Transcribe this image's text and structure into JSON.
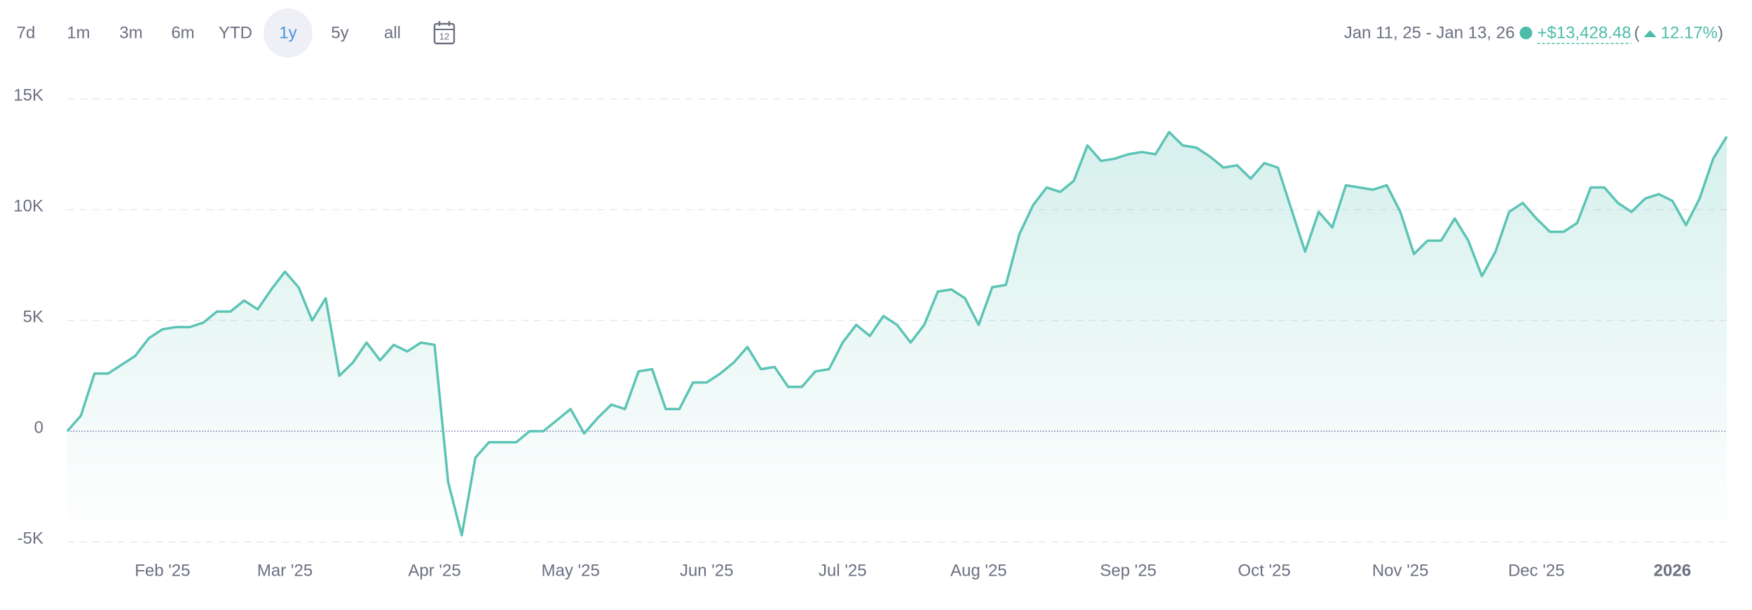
{
  "toolbar": {
    "ranges": [
      "7d",
      "1m",
      "3m",
      "6m",
      "YTD",
      "1y",
      "5y",
      "all"
    ],
    "active": "1y",
    "calendar_day": "12"
  },
  "summary": {
    "date_range": "Jan 11, 25 - Jan 13, 26",
    "change": "+$13,428.48",
    "paren_open": "(",
    "percent": "12.17%",
    "paren_close": ")"
  },
  "chart_data": {
    "type": "line",
    "categories": [
      null,
      null,
      null,
      null,
      null,
      null,
      null,
      "Feb '25",
      null,
      null,
      null,
      null,
      null,
      null,
      null,
      null,
      "Mar '25",
      null,
      null,
      null,
      null,
      null,
      null,
      null,
      null,
      null,
      null,
      "Apr '25",
      null,
      null,
      null,
      null,
      null,
      null,
      null,
      null,
      null,
      "May '25",
      null,
      null,
      null,
      null,
      null,
      null,
      null,
      null,
      null,
      "Jun '25",
      null,
      null,
      null,
      null,
      null,
      null,
      null,
      null,
      null,
      "Jul '25",
      null,
      null,
      null,
      null,
      null,
      null,
      null,
      null,
      null,
      "Aug '25",
      null,
      null,
      null,
      null,
      null,
      null,
      null,
      null,
      null,
      null,
      "Sep '25",
      null,
      null,
      null,
      null,
      null,
      null,
      null,
      null,
      null,
      "Oct '25",
      null,
      null,
      null,
      null,
      null,
      null,
      null,
      null,
      null,
      "Nov '25",
      null,
      null,
      null,
      null,
      null,
      null,
      null,
      null,
      null,
      "Dec '25",
      null,
      null,
      null,
      null,
      null,
      null,
      null,
      null,
      null,
      "2026",
      null,
      null,
      null,
      null
    ],
    "series": [
      {
        "color": "#5cc4b5",
        "values": [
          0,
          700,
          2600,
          2600,
          3000,
          3400,
          4200,
          4600,
          4700,
          4700,
          4900,
          5400,
          5400,
          5900,
          5500,
          6400,
          7200,
          6500,
          5000,
          6000,
          2500,
          3100,
          4000,
          3200,
          3900,
          3600,
          4000,
          3900,
          -2300,
          -4700,
          -1200,
          -500,
          -500,
          -500,
          0,
          0,
          500,
          1000,
          -100,
          600,
          1200,
          1000,
          2700,
          2800,
          1000,
          1000,
          2200,
          2200,
          2600,
          3100,
          3800,
          2800,
          2900,
          2000,
          2000,
          2700,
          2800,
          4000,
          4800,
          4300,
          5200,
          4800,
          4000,
          4800,
          6300,
          6400,
          6000,
          4800,
          6500,
          6600,
          8900,
          10200,
          11000,
          10800,
          11300,
          12900,
          12200,
          12300,
          12500,
          12600,
          12500,
          13500,
          12900,
          12800,
          12400,
          11900,
          12000,
          11400,
          12100,
          11900,
          10000,
          8100,
          9900,
          9200,
          11100,
          11000,
          10900,
          11100,
          9900,
          8000,
          8600,
          8600,
          9600,
          8600,
          7000,
          8100,
          9900,
          10300,
          9600,
          9000,
          9000,
          9400,
          11000,
          11000,
          10300,
          9900,
          10500,
          10700,
          10400,
          9300,
          10500,
          12300,
          13300
        ]
      }
    ],
    "ylim": [
      -5000,
      15000
    ],
    "yticks": [
      {
        "value": -5000,
        "label": "-5K"
      },
      0,
      {
        "value": 5000,
        "label": "5K"
      },
      {
        "value": 10000,
        "label": "10K"
      },
      {
        "value": 15000,
        "label": "15K"
      }
    ],
    "grid": true
  }
}
